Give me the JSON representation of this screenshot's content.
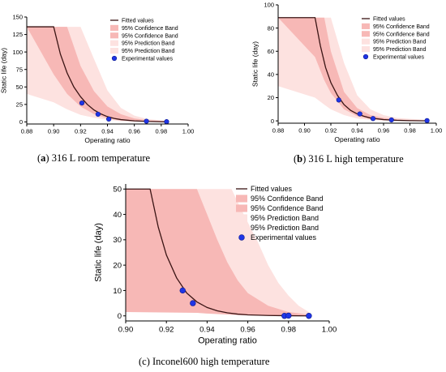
{
  "legend_labels": {
    "fitted": "Fitted values",
    "conf_upper": "95% Confidence Band",
    "conf_lower": "95% Confidence Band",
    "pred_upper": "95% Prediction Band",
    "pred_lower": "95% Prediction Band",
    "experimental": "Experimental values"
  },
  "colors": {
    "fitted_line": "#3a1414",
    "confidence_band": "#f7b8b6",
    "prediction_band": "#fde2e0",
    "experimental_marker": "#1f35e6",
    "marker_edge": "#0d1a8f"
  },
  "chart_data": [
    {
      "id": "a",
      "type": "line",
      "caption_letter": "(a)",
      "caption_text": " 316 L room temperature",
      "xlabel": "Operating ratio",
      "ylabel": "Static life (day)",
      "xlim": [
        0.88,
        1.0
      ],
      "ylim": [
        -3,
        150
      ],
      "xticks": [
        "0.88",
        "0.90",
        "0.92",
        "0.94",
        "0.96",
        "0.98",
        "1.00"
      ],
      "xtick_values": [
        0.88,
        0.9,
        0.92,
        0.94,
        0.96,
        0.98,
        1.0
      ],
      "yticks": [
        "0",
        "25",
        "50",
        "75",
        "100",
        "125",
        "150"
      ],
      "ytick_values": [
        0,
        25,
        50,
        75,
        100,
        125,
        150
      ],
      "legend_position": "top-right",
      "fitted": {
        "plateau": 136,
        "knee": 0.9,
        "x": [
          0.88,
          0.9,
          0.905,
          0.91,
          0.915,
          0.92,
          0.925,
          0.93,
          0.935,
          0.94,
          0.945,
          0.95,
          0.96,
          0.97,
          0.98,
          0.985
        ],
        "y": [
          136,
          136,
          97,
          70,
          50,
          36,
          25,
          17,
          11.5,
          7.5,
          5,
          3.3,
          1.5,
          0.6,
          0.2,
          0.1
        ]
      },
      "confidence_band": {
        "x": [
          0.88,
          0.9,
          0.91,
          0.92,
          0.93,
          0.94,
          0.95,
          0.96,
          0.97,
          0.985
        ],
        "upper": [
          136,
          136,
          136,
          80,
          44,
          22,
          11,
          5,
          2.5,
          1
        ],
        "lower": [
          136,
          68,
          40,
          22,
          11,
          5,
          2,
          0.8,
          0.3,
          0
        ]
      },
      "prediction_band": {
        "x": [
          0.88,
          0.9,
          0.91,
          0.92,
          0.93,
          0.94,
          0.95,
          0.96,
          0.97,
          0.985
        ],
        "upper": [
          136,
          136,
          136,
          136,
          90,
          45,
          20,
          9,
          4,
          1.5
        ],
        "lower": [
          40,
          28,
          18,
          10,
          6,
          3,
          1,
          0.5,
          0.2,
          0
        ]
      },
      "experimental": {
        "x": [
          0.921,
          0.933,
          0.941,
          0.969,
          0.984
        ],
        "y": [
          27,
          11,
          4,
          1,
          0.3
        ]
      }
    },
    {
      "id": "b",
      "type": "line",
      "caption_letter": "(b)",
      "caption_text": " 316 L high temperature",
      "xlabel": "Operating ratio",
      "ylabel": "Static life (day)",
      "xlim": [
        0.88,
        1.0
      ],
      "ylim": [
        -2,
        100
      ],
      "xticks": [
        "0.88",
        "0.90",
        "0.92",
        "0.94",
        "0.96",
        "0.98",
        "1.00"
      ],
      "xtick_values": [
        0.88,
        0.9,
        0.92,
        0.94,
        0.96,
        0.98,
        1.0
      ],
      "yticks": [
        "0",
        "20",
        "40",
        "60",
        "80",
        "100"
      ],
      "ytick_values": [
        0,
        20,
        40,
        60,
        80,
        100
      ],
      "legend_position": "top-right",
      "fitted": {
        "plateau": 89,
        "knee": 0.908,
        "x": [
          0.88,
          0.908,
          0.912,
          0.916,
          0.92,
          0.925,
          0.93,
          0.935,
          0.94,
          0.945,
          0.95,
          0.96,
          0.97,
          0.98,
          0.993
        ],
        "y": [
          89,
          89,
          65,
          46,
          33,
          22,
          14,
          9,
          6,
          4,
          2.5,
          1.1,
          0.5,
          0.2,
          0
        ]
      },
      "confidence_band": {
        "x": [
          0.88,
          0.908,
          0.915,
          0.92,
          0.93,
          0.94,
          0.95,
          0.96,
          0.97,
          0.993
        ],
        "upper": [
          89,
          89,
          89,
          60,
          25,
          11,
          5,
          2.5,
          1.2,
          0.3
        ],
        "lower": [
          89,
          55,
          35,
          24,
          10,
          4,
          1.5,
          0.6,
          0.2,
          0
        ]
      },
      "prediction_band": {
        "x": [
          0.88,
          0.908,
          0.915,
          0.92,
          0.93,
          0.94,
          0.95,
          0.96,
          0.97,
          0.993
        ],
        "upper": [
          89,
          89,
          89,
          89,
          50,
          22,
          10,
          5,
          2.5,
          0.8
        ],
        "lower": [
          30,
          20,
          14,
          10,
          5,
          2,
          0.8,
          0.3,
          0.1,
          0
        ]
      },
      "experimental": {
        "x": [
          0.926,
          0.942,
          0.952,
          0.966,
          0.993
        ],
        "y": [
          18,
          6,
          2,
          0.8,
          0.2
        ]
      }
    },
    {
      "id": "c",
      "type": "line",
      "caption_letter": "",
      "caption_text": "(c) Inconel600 high temperature",
      "xlabel": "Operating ratio",
      "ylabel": "Static life (day)",
      "xlim": [
        0.9,
        1.0
      ],
      "ylim": [
        -2,
        52
      ],
      "xticks": [
        "0.90",
        "0.92",
        "0.94",
        "0.96",
        "0.98",
        "1.00"
      ],
      "xtick_values": [
        0.9,
        0.92,
        0.94,
        0.96,
        0.98,
        1.0
      ],
      "yticks": [
        "0",
        "10",
        "20",
        "30",
        "40",
        "50"
      ],
      "ytick_values": [
        0,
        10,
        20,
        30,
        40,
        50
      ],
      "legend_position": "top-right",
      "fitted": {
        "plateau": 50,
        "knee": 0.912,
        "x": [
          0.9,
          0.912,
          0.916,
          0.92,
          0.925,
          0.93,
          0.935,
          0.94,
          0.945,
          0.95,
          0.955,
          0.96,
          0.97,
          0.98,
          0.99
        ],
        "y": [
          50,
          50,
          35,
          24,
          15,
          9,
          5.5,
          3.3,
          2,
          1.2,
          0.7,
          0.4,
          0.15,
          0.05,
          0
        ]
      },
      "confidence_band": {
        "x": [
          0.9,
          0.935,
          0.94,
          0.945,
          0.95,
          0.955,
          0.96,
          0.97,
          0.98,
          0.99
        ],
        "upper": [
          50,
          50,
          40,
          30,
          21,
          14,
          9,
          4,
          1.5,
          0.5
        ],
        "lower": [
          1.5,
          1.2,
          0.9,
          0.7,
          0.5,
          0.3,
          0.2,
          0.1,
          0,
          0
        ]
      },
      "prediction_band": {
        "x": [
          0.9,
          0.952,
          0.958,
          0.965,
          0.97,
          0.975,
          0.98,
          0.985,
          0.99
        ],
        "upper": [
          50,
          50,
          40,
          29,
          20,
          13,
          8,
          4,
          1.5
        ],
        "lower": [
          2.5,
          1.5,
          1,
          0.7,
          0.5,
          0.3,
          0.2,
          0.1,
          0
        ]
      },
      "experimental": {
        "x": [
          0.928,
          0.933,
          0.978,
          0.98,
          0.99
        ],
        "y": [
          10,
          5,
          0,
          0.1,
          0
        ]
      }
    }
  ]
}
